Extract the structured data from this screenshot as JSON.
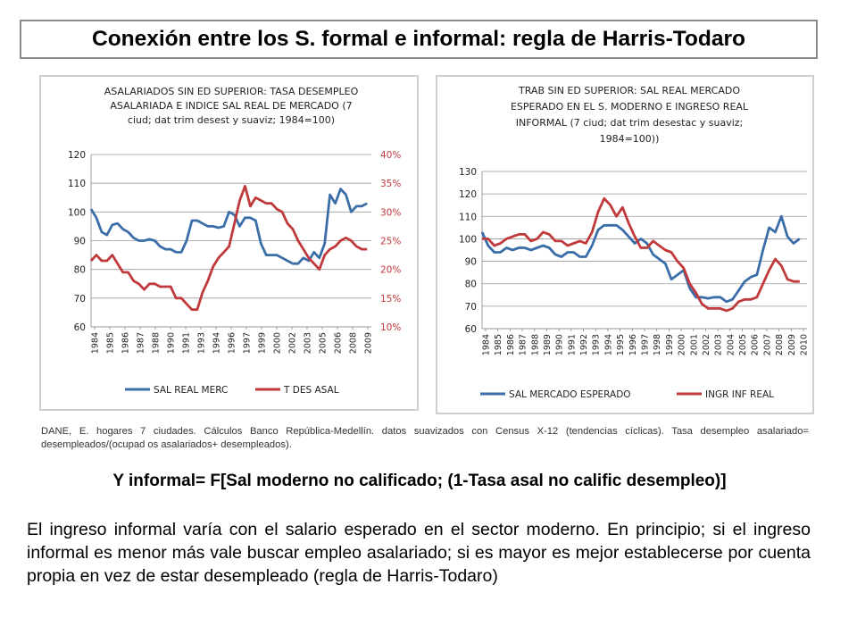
{
  "title": "Conexión entre los S. formal e informal: regla de Harris-Todaro",
  "chart_data": [
    {
      "type": "line",
      "title_lines": [
        "ASALARIADOS SIN ED SUPERIOR:  TASA DESEMPLEO",
        "ASALARIADA E INDICE SAL REAL DE MERCADO (7",
        "ciud;  dat trim desest y suaviz;  1984=100)"
      ],
      "ylim": [
        60,
        120
      ],
      "yticks": [
        60,
        70,
        80,
        90,
        100,
        110,
        120
      ],
      "y2lim": [
        10,
        40
      ],
      "y2ticks": [
        "10%",
        "15%",
        "20%",
        "25%",
        "30%",
        "35%",
        "40%"
      ],
      "xlim": [
        1984,
        2010.4
      ],
      "xticks": [
        "1984",
        "1985",
        "1986",
        "1987",
        "1988",
        "1990",
        "1991",
        "1993",
        "1994",
        "1996",
        "1997",
        "1999",
        "2000",
        "2002",
        "2003",
        "2005",
        "2006",
        "2008",
        "2009"
      ],
      "legend_position": "bottom",
      "grid": true,
      "colors": {
        "primary": "#3b6ea8",
        "secondary": "#c0393b",
        "axis2": "#c0393b"
      },
      "series": [
        {
          "name": "SAL REAL MERC",
          "axis": "left",
          "color": "#3b6ea8",
          "x": [
            1984.0,
            1984.5,
            1985.0,
            1985.5,
            1986.0,
            1986.5,
            1987.0,
            1987.5,
            1988.0,
            1988.5,
            1989.0,
            1989.5,
            1990.0,
            1990.5,
            1991.0,
            1991.5,
            1992.0,
            1992.5,
            1993.0,
            1993.5,
            1994.0,
            1994.5,
            1995.0,
            1995.5,
            1996.0,
            1996.5,
            1997.0,
            1997.5,
            1998.0,
            1998.5,
            1999.0,
            1999.5,
            2000.0,
            2000.5,
            2001.0,
            2001.5,
            2002.0,
            2002.5,
            2003.0,
            2003.5,
            2004.0,
            2004.5,
            2005.0,
            2005.5,
            2006.0,
            2006.5,
            2007.0,
            2007.5,
            2008.0,
            2008.5,
            2009.0,
            2009.5,
            2010.0
          ],
          "values": [
            101,
            98,
            93,
            92,
            95.5,
            96,
            94,
            93,
            91,
            90,
            90,
            90.5,
            90,
            88,
            87,
            87,
            86,
            86,
            90,
            97,
            97,
            96,
            95,
            95,
            94.5,
            95,
            100,
            99,
            95,
            98,
            98,
            97,
            89,
            85,
            85,
            85,
            84,
            83,
            82,
            82,
            84,
            83,
            86,
            84,
            89,
            106,
            103,
            108,
            106,
            100,
            102,
            102,
            103
          ]
        },
        {
          "name": "T DES ASAL",
          "axis": "right",
          "color": "#c0393b",
          "x": [
            1984.0,
            1984.5,
            1985.0,
            1985.5,
            1986.0,
            1986.5,
            1987.0,
            1987.5,
            1988.0,
            1988.5,
            1989.0,
            1989.5,
            1990.0,
            1990.5,
            1991.0,
            1991.5,
            1992.0,
            1992.5,
            1993.0,
            1993.5,
            1994.0,
            1994.5,
            1995.0,
            1995.5,
            1996.0,
            1996.5,
            1997.0,
            1997.5,
            1998.0,
            1998.5,
            1999.0,
            1999.5,
            2000.0,
            2000.5,
            2001.0,
            2001.5,
            2002.0,
            2002.5,
            2003.0,
            2003.5,
            2004.0,
            2004.5,
            2005.0,
            2005.5,
            2006.0,
            2006.5,
            2007.0,
            2007.5,
            2008.0,
            2008.5,
            2009.0,
            2009.5,
            2010.0
          ],
          "values": [
            21.5,
            22.5,
            21.5,
            21.5,
            22.5,
            21,
            19.5,
            19.5,
            18,
            17.5,
            16.5,
            17.5,
            17.5,
            17,
            17,
            17,
            15,
            15,
            14,
            13,
            13,
            16,
            18,
            20.5,
            22,
            23,
            24,
            28,
            32,
            34.5,
            31,
            32.5,
            32,
            31.5,
            31.5,
            30.5,
            30,
            28,
            27,
            25,
            23.5,
            22,
            21,
            20,
            22.5,
            23.5,
            24,
            25,
            25.5,
            25,
            24,
            23.5,
            23.5
          ]
        }
      ]
    },
    {
      "type": "line",
      "title_lines": [
        "TRAB SIN ED SUPERIOR: SAL REAL MERCADO",
        "ESPERADO EN EL S. MODERNO E INGRESO REAL",
        "INFORMAL (7 ciud; dat trim desestac y suaviz;",
        "1984=100))"
      ],
      "ylim": [
        60,
        130
      ],
      "yticks": [
        60,
        70,
        80,
        90,
        100,
        110,
        120,
        130
      ],
      "xlim": [
        1984,
        2010.6
      ],
      "xticks": [
        "1984",
        "1985",
        "1986",
        "1987",
        "1988",
        "1989",
        "1990",
        "1991",
        "1992",
        "1993",
        "1994",
        "1995",
        "1996",
        "1997",
        "1998",
        "1999",
        "2000",
        "2001",
        "2002",
        "2003",
        "2004",
        "2005",
        "2006",
        "2007",
        "2008",
        "2009",
        "2010"
      ],
      "legend_position": "bottom",
      "grid": true,
      "colors": {
        "primary": "#3b6ea8",
        "secondary": "#c0393b"
      },
      "series": [
        {
          "name": "SAL  MERCADO ESPERADO",
          "color": "#3b6ea8",
          "x": [
            1984.0,
            1984.5,
            1985.0,
            1985.5,
            1986.0,
            1986.5,
            1987.0,
            1987.5,
            1988.0,
            1988.5,
            1989.0,
            1989.5,
            1990.0,
            1990.5,
            1991.0,
            1991.5,
            1992.0,
            1992.5,
            1993.0,
            1993.5,
            1994.0,
            1994.5,
            1995.0,
            1995.5,
            1996.0,
            1996.5,
            1997.0,
            1997.5,
            1998.0,
            1998.5,
            1999.0,
            1999.5,
            2000.0,
            2000.5,
            2001.0,
            2001.5,
            2002.0,
            2002.5,
            2003.0,
            2003.5,
            2004.0,
            2004.5,
            2005.0,
            2005.5,
            2006.0,
            2006.5,
            2007.0,
            2007.5,
            2008.0,
            2008.5,
            2009.0,
            2009.5,
            2010.0
          ],
          "values": [
            103,
            97,
            94,
            94,
            96,
            95,
            96,
            96,
            95,
            96,
            97,
            96,
            93,
            92,
            94,
            94,
            92,
            92,
            97,
            104,
            106,
            106,
            106,
            104,
            101,
            98,
            100,
            98,
            93,
            91,
            89,
            82,
            84,
            86,
            78,
            74,
            74,
            73.5,
            74,
            74,
            72,
            73,
            77,
            81,
            83,
            84,
            95,
            105,
            103,
            110,
            101,
            98,
            100
          ]
        },
        {
          "name": "INGR INF REAL",
          "color": "#c0393b",
          "x": [
            1984.0,
            1984.5,
            1985.0,
            1985.5,
            1986.0,
            1986.5,
            1987.0,
            1987.5,
            1988.0,
            1988.5,
            1989.0,
            1989.5,
            1990.0,
            1990.5,
            1991.0,
            1991.5,
            1992.0,
            1992.5,
            1993.0,
            1993.5,
            1994.0,
            1994.5,
            1995.0,
            1995.5,
            1996.0,
            1996.5,
            1997.0,
            1997.5,
            1998.0,
            1998.5,
            1999.0,
            1999.5,
            2000.0,
            2000.5,
            2001.0,
            2001.5,
            2002.0,
            2002.5,
            2003.0,
            2003.5,
            2004.0,
            2004.5,
            2005.0,
            2005.5,
            2006.0,
            2006.5,
            2007.0,
            2007.5,
            2008.0,
            2008.5,
            2009.0,
            2009.5,
            2010.0
          ],
          "values": [
            100,
            100,
            97,
            98,
            100,
            101,
            102,
            102,
            99,
            100,
            103,
            102,
            99,
            99,
            97,
            98,
            99,
            98,
            103,
            112,
            118,
            115,
            110,
            114,
            107,
            101,
            96,
            96,
            99,
            97,
            95,
            94,
            90,
            87,
            80,
            76,
            71,
            69,
            69,
            69,
            68,
            69,
            72,
            73,
            73,
            74,
            80,
            86,
            91,
            88,
            82,
            81,
            81
          ]
        }
      ]
    }
  ],
  "source_note": "DANE, E. hogares 7 ciudades. Cálculos Banco República-Medellín. datos suavizados con Census X-12 (tendencias cíclicas). Tasa desempleo asalariado= desempleados/(ocupad os asalariados+  desempleados).",
  "formula": "Y informal= F[Sal moderno no calificado; (1-Tasa asal no calific desempleo)]",
  "paragraph": "El ingreso informal varía con el salario esperado en el sector moderno. En principio; si el ingreso informal es menor más vale buscar empleo asalariado; si es mayor es mejor establecerse por cuenta propia en vez de estar desempleado (regla de Harris-Todaro)"
}
